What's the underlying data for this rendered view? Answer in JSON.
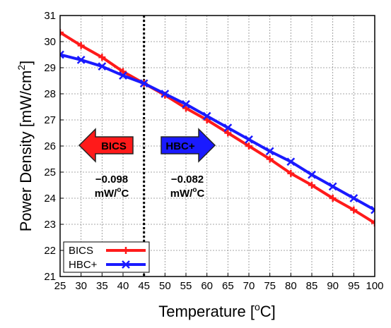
{
  "chart_data": {
    "type": "line",
    "title": "",
    "xlabel": "Temperature [",
    "xlabel_unit_sup": "o",
    "xlabel_unit_tail": "C]",
    "ylabel": "Power Density [mW/cm",
    "ylabel_sup": "2",
    "ylabel_tail": "]",
    "xlim": [
      25,
      100
    ],
    "ylim": [
      21,
      31
    ],
    "x_ticks": [
      "25",
      "30",
      "35",
      "40",
      "45",
      "50",
      "55",
      "60",
      "65",
      "70",
      "75",
      "80",
      "85",
      "90",
      "95",
      "100"
    ],
    "y_ticks": [
      "21",
      "22",
      "23",
      "24",
      "25",
      "26",
      "27",
      "28",
      "29",
      "30",
      "31"
    ],
    "grid": true,
    "legend_position": "bottom-left",
    "x": [
      25,
      30,
      35,
      40,
      45,
      50,
      55,
      60,
      65,
      70,
      75,
      80,
      85,
      90,
      95,
      100
    ],
    "series": [
      {
        "name": "BICS",
        "color": "#ff1a1a",
        "marker": "plus",
        "values": [
          30.35,
          29.85,
          29.4,
          28.85,
          28.4,
          27.95,
          27.45,
          27.0,
          26.5,
          26.0,
          25.5,
          24.95,
          24.5,
          24.0,
          23.55,
          23.05
        ]
      },
      {
        "name": "HBC+",
        "color": "#1a1aff",
        "marker": "x",
        "values": [
          29.5,
          29.3,
          29.05,
          28.7,
          28.4,
          28.0,
          27.6,
          27.15,
          26.7,
          26.25,
          25.8,
          25.4,
          24.9,
          24.45,
          24.0,
          23.55
        ]
      }
    ],
    "divider_x": 45,
    "annotations": [
      {
        "id": "left",
        "arrow_label": "BICS",
        "arrow_direction": "left",
        "arrow_color": "#ff1a1a",
        "value": "−0.098",
        "unit_main": "mW/",
        "unit_sup": "o",
        "unit_tail": "C"
      },
      {
        "id": "right",
        "arrow_label": "HBC+",
        "arrow_direction": "right",
        "arrow_color": "#1a1aff",
        "value": "−0.082",
        "unit_main": "mW/",
        "unit_sup": "o",
        "unit_tail": "C"
      }
    ]
  }
}
